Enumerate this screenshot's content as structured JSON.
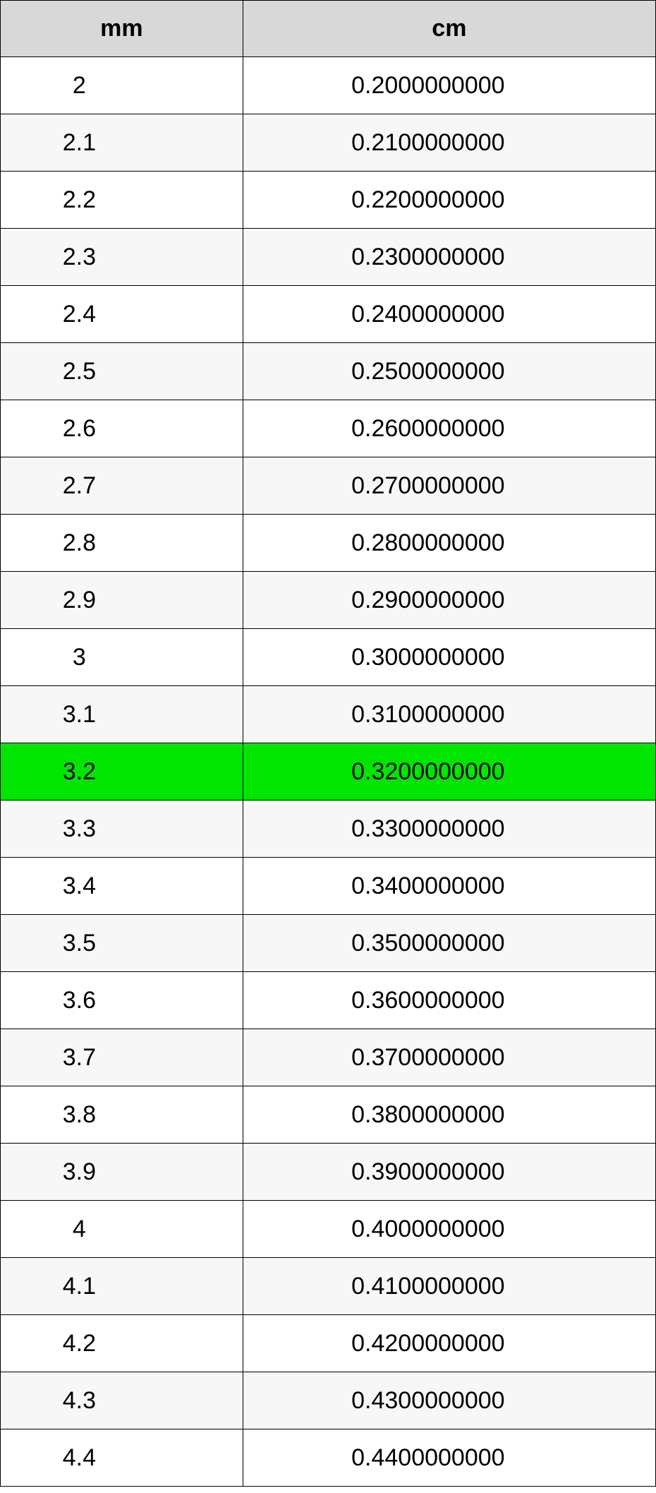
{
  "table": {
    "columns": [
      "mm",
      "cm"
    ],
    "header_bg": "#d8d8d8",
    "header_fontsize": 34,
    "cell_fontsize": 34,
    "border_color": "#000000",
    "row_bg_even": "#ffffff",
    "row_bg_odd": "#f7f7f7",
    "highlight_bg": "#00e600",
    "highlight_index": 12,
    "rows": [
      {
        "mm": "2",
        "cm": "0.2000000000"
      },
      {
        "mm": "2.1",
        "cm": "0.2100000000"
      },
      {
        "mm": "2.2",
        "cm": "0.2200000000"
      },
      {
        "mm": "2.3",
        "cm": "0.2300000000"
      },
      {
        "mm": "2.4",
        "cm": "0.2400000000"
      },
      {
        "mm": "2.5",
        "cm": "0.2500000000"
      },
      {
        "mm": "2.6",
        "cm": "0.2600000000"
      },
      {
        "mm": "2.7",
        "cm": "0.2700000000"
      },
      {
        "mm": "2.8",
        "cm": "0.2800000000"
      },
      {
        "mm": "2.9",
        "cm": "0.2900000000"
      },
      {
        "mm": "3",
        "cm": "0.3000000000"
      },
      {
        "mm": "3.1",
        "cm": "0.3100000000"
      },
      {
        "mm": "3.2",
        "cm": "0.3200000000"
      },
      {
        "mm": "3.3",
        "cm": "0.3300000000"
      },
      {
        "mm": "3.4",
        "cm": "0.3400000000"
      },
      {
        "mm": "3.5",
        "cm": "0.3500000000"
      },
      {
        "mm": "3.6",
        "cm": "0.3600000000"
      },
      {
        "mm": "3.7",
        "cm": "0.3700000000"
      },
      {
        "mm": "3.8",
        "cm": "0.3800000000"
      },
      {
        "mm": "3.9",
        "cm": "0.3900000000"
      },
      {
        "mm": "4",
        "cm": "0.4000000000"
      },
      {
        "mm": "4.1",
        "cm": "0.4100000000"
      },
      {
        "mm": "4.2",
        "cm": "0.4200000000"
      },
      {
        "mm": "4.3",
        "cm": "0.4300000000"
      },
      {
        "mm": "4.4",
        "cm": "0.4400000000"
      }
    ]
  }
}
